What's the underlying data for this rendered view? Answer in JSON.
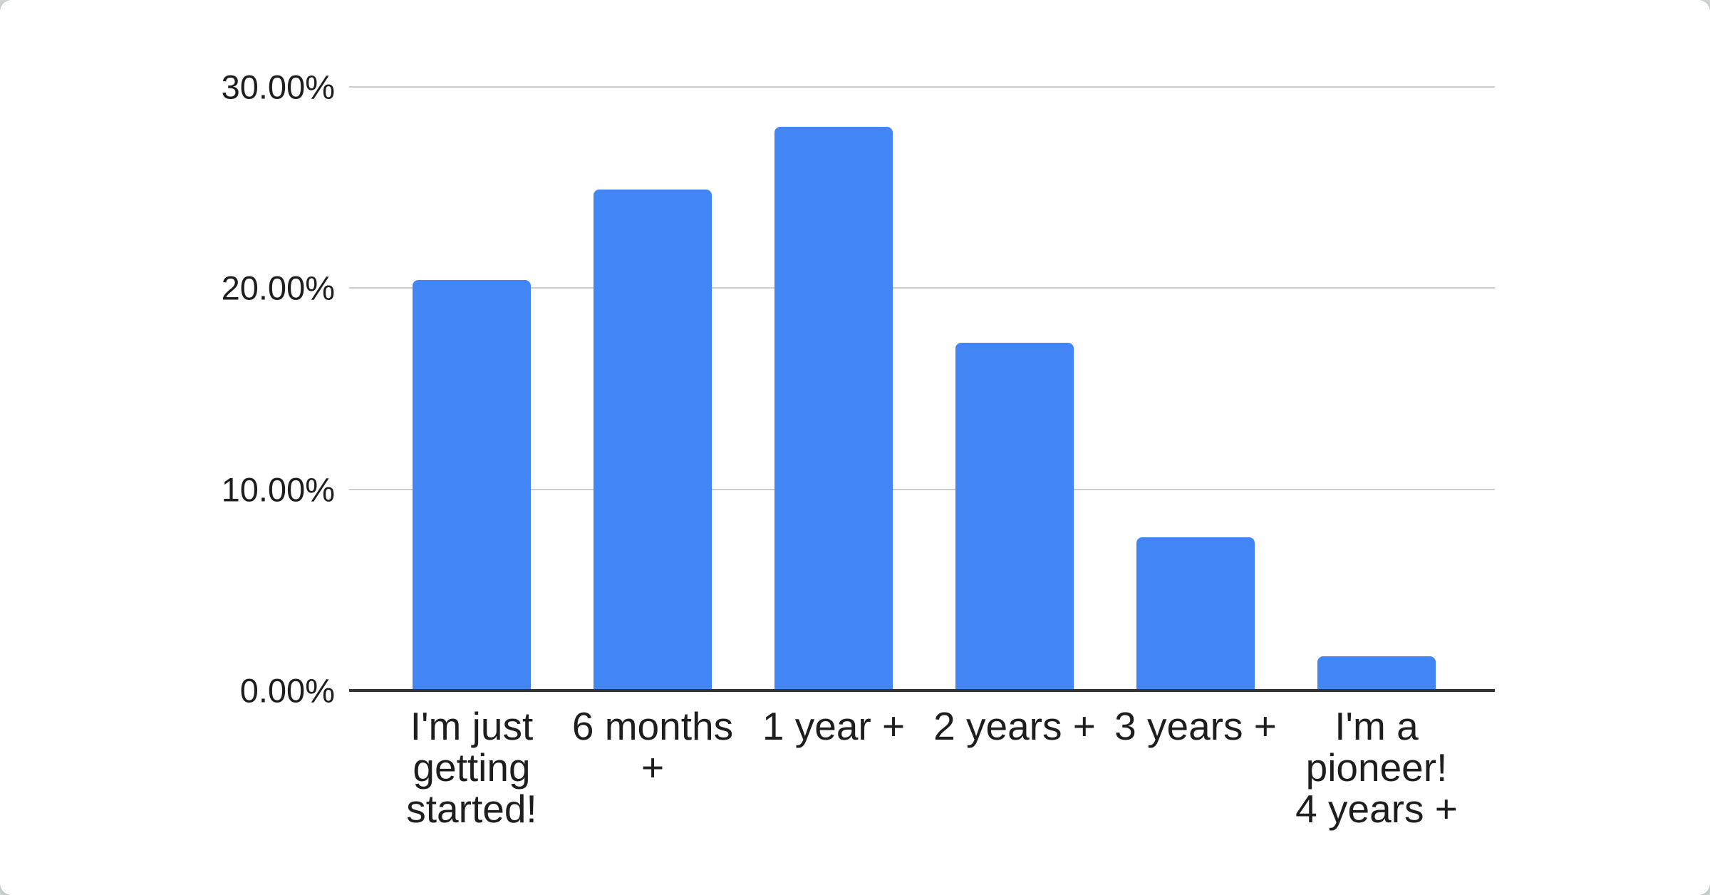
{
  "colors": {
    "bar": "#4285F4",
    "grid": "#cccccc",
    "axis": "#333333",
    "text": "#1e1e1e",
    "card_bg": "#ffffff",
    "page_bg": "#cfd4d2"
  },
  "chart_data": {
    "type": "bar",
    "categories": [
      "I'm just getting started!",
      "6 months +",
      "1 year +",
      "2 years +",
      "3 years +",
      "I'm a pioneer! 4 years +"
    ],
    "values": [
      20.4,
      24.9,
      28.0,
      17.3,
      7.6,
      1.7
    ],
    "title": "",
    "xlabel": "",
    "ylabel": "",
    "ylim": [
      0,
      30
    ],
    "ytick_values": [
      0,
      10,
      20,
      30
    ],
    "ytick_labels": [
      "0.00%",
      "10.00%",
      "20.00%",
      "30.00%"
    ],
    "grid": true,
    "legend": "none",
    "bar_color": "#4285F4"
  }
}
